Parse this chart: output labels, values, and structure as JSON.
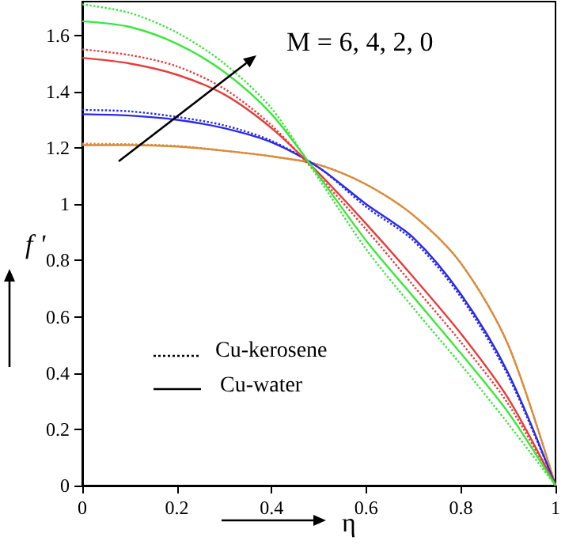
{
  "chart_data": {
    "type": "line",
    "xlabel": "η",
    "ylabel": "f '",
    "annotations": [
      "M = 6, 4, 2, 0",
      "Cu-kerosene",
      "Cu-water"
    ],
    "x": [
      0,
      0.1,
      0.2,
      0.3,
      0.4,
      0.5,
      0.6,
      0.7,
      0.8,
      0.9,
      1
    ],
    "xlim": [
      0,
      1
    ],
    "xticks": [
      0,
      0.2,
      0.4,
      0.6,
      0.8,
      1
    ],
    "ylim": [
      0,
      1.72
    ],
    "yticks": [
      0,
      0.2,
      0.4,
      0.6,
      0.8,
      1,
      1.2,
      1.4,
      1.6
    ],
    "grid": false,
    "marker": "none",
    "series": [
      {
        "color": "#d98c3c",
        "line_style": "solid",
        "values": [
          1.21,
          1.21,
          1.205,
          1.19,
          1.17,
          1.14,
          1.07,
          0.96,
          0.79,
          0.5,
          0
        ]
      },
      {
        "color": "#d98c3c",
        "line_style": "dotted",
        "values": [
          1.215,
          1.213,
          1.207,
          1.19,
          1.17,
          1.14,
          1.07,
          0.96,
          0.79,
          0.5,
          0
        ]
      },
      {
        "color": "#2a2ae6",
        "line_style": "solid",
        "values": [
          1.32,
          1.315,
          1.3,
          1.27,
          1.22,
          1.13,
          1.0,
          0.88,
          0.68,
          0.4,
          0
        ]
      },
      {
        "color": "#2a2ae6",
        "line_style": "dotted",
        "values": [
          1.335,
          1.33,
          1.31,
          1.28,
          1.225,
          1.13,
          0.99,
          0.87,
          0.67,
          0.39,
          0
        ]
      },
      {
        "color": "#e63c3c",
        "line_style": "solid",
        "values": [
          1.52,
          1.5,
          1.46,
          1.39,
          1.27,
          1.11,
          0.93,
          0.74,
          0.54,
          0.31,
          0
        ]
      },
      {
        "color": "#e63c3c",
        "line_style": "dotted",
        "values": [
          1.55,
          1.53,
          1.49,
          1.41,
          1.28,
          1.1,
          0.91,
          0.71,
          0.51,
          0.29,
          0
        ]
      },
      {
        "color": "#3ce63c",
        "line_style": "solid",
        "values": [
          1.65,
          1.63,
          1.57,
          1.47,
          1.32,
          1.1,
          0.87,
          0.67,
          0.47,
          0.26,
          0
        ]
      },
      {
        "color": "#3ce63c",
        "line_style": "dotted",
        "values": [
          1.71,
          1.68,
          1.61,
          1.5,
          1.34,
          1.09,
          0.84,
          0.63,
          0.43,
          0.22,
          0
        ]
      }
    ]
  }
}
